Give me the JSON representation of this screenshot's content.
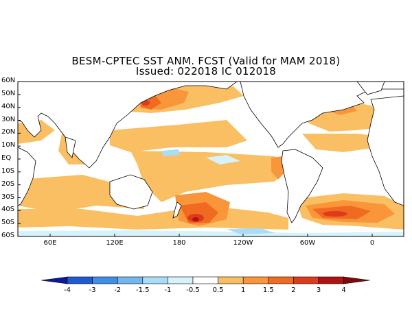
{
  "title": {
    "line1": "BESM-CPTEC SST ANM. FCST  (Valid for MAM 2018)",
    "line2": "Issued:  022018 IC 012018"
  },
  "lat_labels": [
    "60N",
    "50N",
    "40N",
    "30N",
    "20N",
    "10N",
    "EQ",
    "10S",
    "20S",
    "30S",
    "40S",
    "50S",
    "60S"
  ],
  "lon_labels": [
    "60E",
    "120E",
    "180",
    "120W",
    "60W",
    "0"
  ],
  "colorbar": {
    "labels": [
      "-4",
      "-3",
      "-2",
      "-1.5",
      "-1",
      "-0.5",
      "0.5",
      "1",
      "1.5",
      "2",
      "3",
      "4"
    ],
    "colors": [
      "#0a1a9a",
      "#1e5ad2",
      "#3f8fe6",
      "#73b7f0",
      "#a8dcf7",
      "#d6f3fb",
      "#ffffff",
      "#fbbf63",
      "#f9963a",
      "#f16a22",
      "#de3b1a",
      "#b11212",
      "#850606"
    ]
  }
}
